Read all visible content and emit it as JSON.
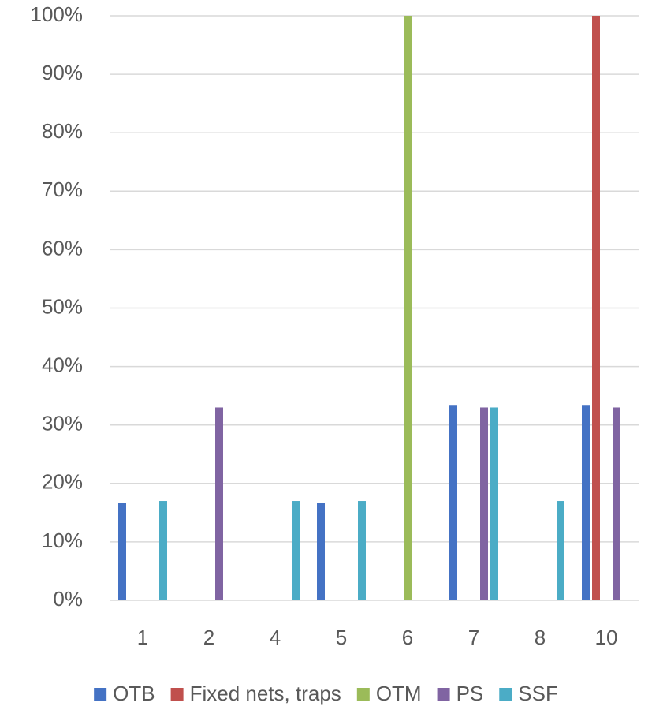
{
  "chart_data": {
    "type": "bar",
    "categories": [
      "1",
      "2",
      "4",
      "5",
      "6",
      "7",
      "8",
      "10"
    ],
    "series": [
      {
        "name": "OTB",
        "color": "#4472c4",
        "values": [
          16.7,
          null,
          null,
          16.7,
          null,
          33.3,
          null,
          33.3
        ]
      },
      {
        "name": "Fixed nets, traps",
        "color": "#c0504d",
        "values": [
          null,
          null,
          null,
          null,
          null,
          null,
          null,
          100
        ]
      },
      {
        "name": "OTM",
        "color": "#9bbb59",
        "values": [
          null,
          null,
          null,
          null,
          100,
          null,
          null,
          null
        ]
      },
      {
        "name": "PS",
        "color": "#8064a2",
        "values": [
          null,
          33,
          null,
          null,
          null,
          33,
          null,
          33
        ]
      },
      {
        "name": "SSF",
        "color": "#4bacc6",
        "values": [
          17,
          null,
          17,
          17,
          null,
          33,
          17,
          null
        ]
      }
    ],
    "ylim": [
      0,
      100
    ],
    "yticks": [
      {
        "value": 0,
        "label": "0%"
      },
      {
        "value": 10,
        "label": "10%"
      },
      {
        "value": 20,
        "label": "20%"
      },
      {
        "value": 30,
        "label": "30%"
      },
      {
        "value": 40,
        "label": "40%"
      },
      {
        "value": 50,
        "label": "50%"
      },
      {
        "value": 60,
        "label": "60%"
      },
      {
        "value": 70,
        "label": "70%"
      },
      {
        "value": 80,
        "label": "80%"
      },
      {
        "value": 90,
        "label": "90%"
      },
      {
        "value": 100,
        "label": "100%"
      }
    ],
    "grid": true,
    "legend": "bottom"
  }
}
